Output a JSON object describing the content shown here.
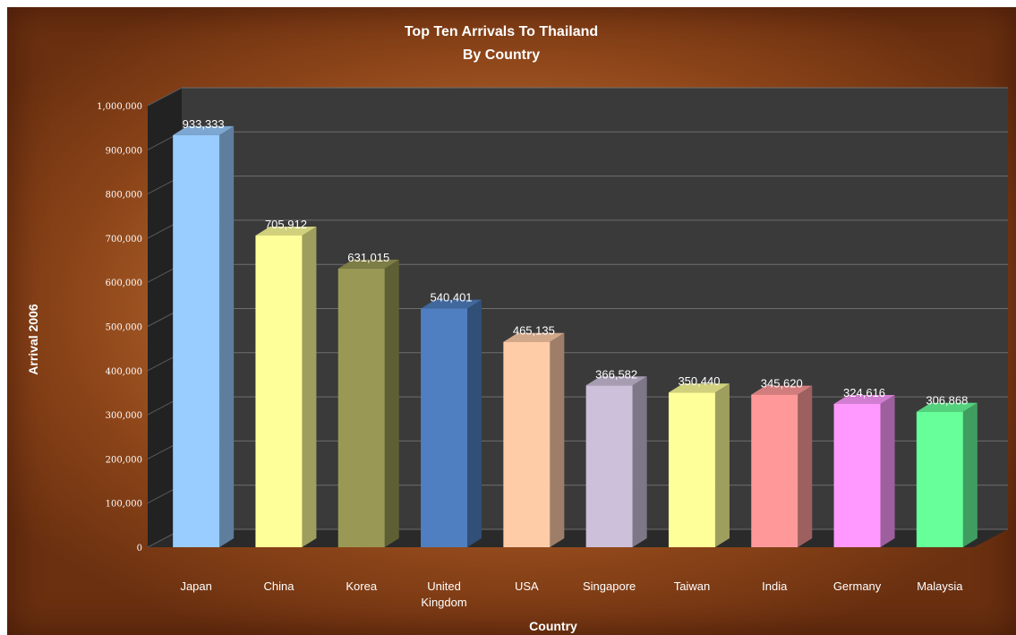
{
  "chart_data": {
    "type": "bar",
    "title": "Top Ten Arrivals To Thailand",
    "subtitle": "By Country",
    "xlabel": "Country",
    "ylabel": "Arrival 2006",
    "categories": [
      "Japan",
      "China",
      "Korea",
      "United Kingdom",
      "USA",
      "Singapore",
      "Taiwan",
      "India",
      "Germany",
      "Malaysia"
    ],
    "values": [
      933333,
      705912,
      631015,
      540401,
      465135,
      366582,
      350440,
      345620,
      324616,
      306868
    ],
    "value_labels": [
      "933,333",
      "705,912",
      "631,015",
      "540,401",
      "465,135",
      "366,582",
      "350,440",
      "345,620",
      "324,616",
      "306,868"
    ],
    "ylim": [
      0,
      1000000
    ],
    "yticks": [
      0,
      100000,
      200000,
      300000,
      400000,
      500000,
      600000,
      700000,
      800000,
      900000,
      1000000
    ],
    "ytick_labels": [
      "0",
      "100,000",
      "200,000",
      "300,000",
      "400,000",
      "500,000",
      "600,000",
      "700,000",
      "800,000",
      "900,000",
      "1,000,000"
    ],
    "grid": true,
    "legend": "none",
    "colors": [
      "#99CCFF",
      "#FFFF99",
      "#999955",
      "#4F7FC0",
      "#FFCCA8",
      "#CCC0DA",
      "#FFFF99",
      "#FF9999",
      "#FF99FF",
      "#66FF99"
    ],
    "plot_wall_color": "#3a3a3a",
    "plot_side_color": "#222222"
  }
}
